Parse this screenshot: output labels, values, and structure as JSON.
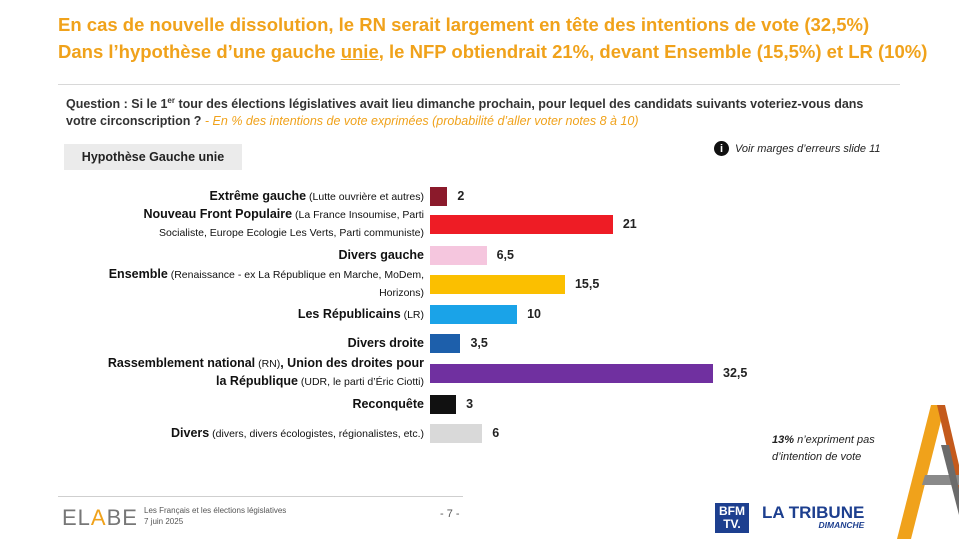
{
  "headline": {
    "line1": "En cas de nouvelle dissolution, le RN serait largement en tête des intentions de vote (32,5%)",
    "line2_pre": "Dans l’hypothèse d’une gauche ",
    "line2_u": "unie",
    "line2_post": ", le NFP obtiendrait 21%, devant Ensemble (15,5%) et LR (10%)"
  },
  "question": {
    "pre": "Question : Si le 1",
    "sup": "er",
    "post": " tour des élections législatives avait lieu dimanche prochain, pour lequel des candidats suivants voteriez-vous dans votre circonscription ?",
    "note": " - En % des intentions de vote exprimées (probabilité d’aller voter notes 8 à 10)"
  },
  "hypothesis": "Hypothèse Gauche unie",
  "margin_note": "Voir marges d’erreurs slide 11",
  "info_icon": "i",
  "chart_data": {
    "type": "bar",
    "orientation": "horizontal",
    "categories": [
      {
        "name": "Extrême gauche",
        "detail": "(Lutte ouvrière et autres)",
        "value": 2,
        "label": "2",
        "color": "#8b1a2b"
      },
      {
        "name": "Nouveau Front Populaire",
        "detail": "(La France Insoumise, Parti Socialiste, Europe Ecologie Les Verts, Parti communiste)",
        "value": 21,
        "label": "21",
        "color": "#ee1c25"
      },
      {
        "name": "Divers gauche",
        "detail": "",
        "value": 6.5,
        "label": "6,5",
        "color": "#f5c6de"
      },
      {
        "name": "Ensemble",
        "detail": "(Renaissance - ex La République en Marche, MoDem, Horizons)",
        "value": 15.5,
        "label": "15,5",
        "color": "#fbbf00"
      },
      {
        "name": "Les Républicains",
        "detail": "(LR)",
        "value": 10,
        "label": "10",
        "color": "#1aa3e8"
      },
      {
        "name": "Divers droite",
        "detail": "",
        "value": 3.5,
        "label": "3,5",
        "color": "#1d5fab"
      },
      {
        "name": "Rassemblement national",
        "detail_mid": "(RN)",
        "name2": ", Union des droites pour la République",
        "detail": "(UDR, le parti d’Éric Ciotti)",
        "value": 32.5,
        "label": "32,5",
        "color": "#7030a0"
      },
      {
        "name": "Reconquête",
        "detail": "",
        "value": 3,
        "label": "3",
        "color": "#111111"
      },
      {
        "name": "Divers",
        "detail": "(divers, divers écologistes, régionalistes, etc.)",
        "value": 6,
        "label": "6",
        "color": "#d9d9d9"
      }
    ],
    "xlim": [
      0,
      32.5
    ]
  },
  "abstention": {
    "pct": "13%",
    "text": " n’expriment pas d’intention de vote"
  },
  "footer": {
    "brand_pre": "EL",
    "brand_a": "A",
    "brand_post": "BE",
    "line1": "Les Français et les élections législatives",
    "line2": "7 juin 2025",
    "page": "- 7 -",
    "bfm_line1": "BFM",
    "bfm_line2": "TV.",
    "tribune": "LA TRIBUNE",
    "tribune_sub": "DIMANCHE"
  }
}
